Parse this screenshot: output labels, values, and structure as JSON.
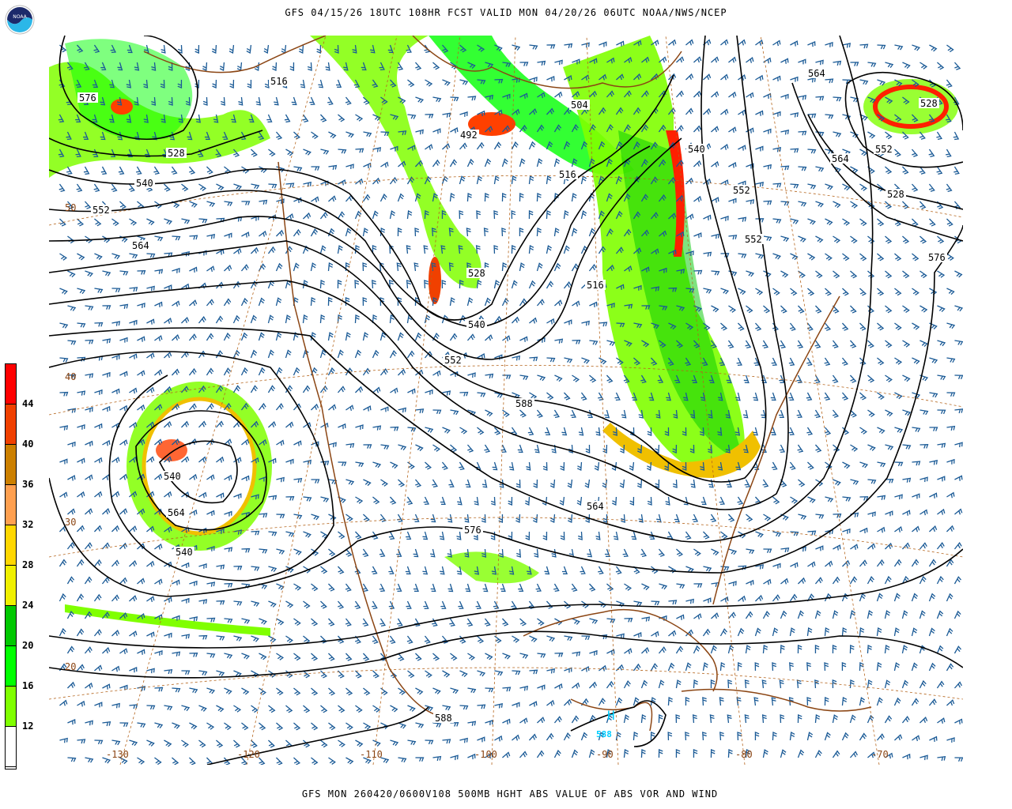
{
  "header": {
    "title": "GFS 04/15/26 18UTC 108HR FCST VALID MON 04/20/26 06UTC NOAA/NWS/NCEP"
  },
  "footer": {
    "caption": "GFS MON 260420/0600V108 500MB HGHT ABS VALUE OF ABS VOR AND WIND"
  },
  "logo": {
    "text": "NOAA",
    "icon": "noaa-logo"
  },
  "colorbar": {
    "labels": [
      "44",
      "40",
      "36",
      "32",
      "28",
      "24",
      "20",
      "16",
      "12"
    ],
    "colors": [
      "#ff0000",
      "#f04000",
      "#cc8000",
      "#ffa050",
      "#ffd700",
      "#f0f000",
      "#00c800",
      "#00ff00",
      "#80ff00",
      "#ffffff"
    ]
  },
  "map": {
    "colors": {
      "contour": "#000000",
      "barb": "#1a5a96",
      "coast": "#8b4513",
      "highlow": "#00ccff"
    },
    "height_contour_labels": [
      "576",
      "516",
      "528",
      "540",
      "552",
      "564",
      "504",
      "492",
      "516",
      "528",
      "540",
      "552",
      "564",
      "576",
      "588",
      "564",
      "552",
      "540",
      "528",
      "564",
      "576",
      "528",
      "516",
      "540",
      "552",
      "564",
      "540",
      "552",
      "588"
    ],
    "longitude_labels": [
      "-130",
      "-120",
      "-110",
      "-100",
      "-90",
      "-80",
      "-70"
    ],
    "latitude_labels": [
      "50",
      "40",
      "30",
      "20"
    ],
    "highs": [
      {
        "label": "H",
        "value": "588"
      }
    ]
  }
}
